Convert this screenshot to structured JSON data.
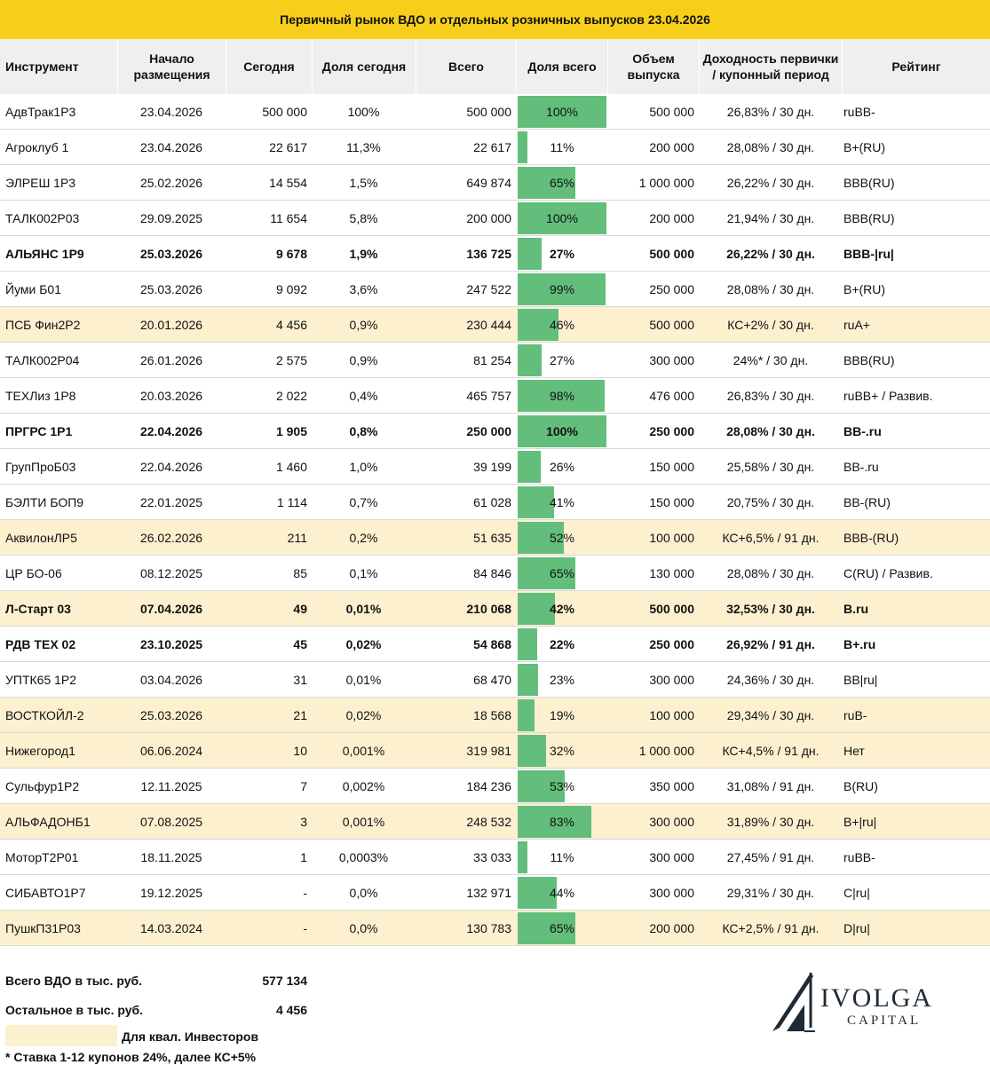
{
  "title": "Первичный рынок ВДО и отдельных розничных выпусков 23.04.2026",
  "columns": {
    "instrument": "Инструмент",
    "start": "Начало размещения",
    "today": "Сегодня",
    "share_today": "Доля сегодня",
    "total": "Всего",
    "share_total": "Доля всего",
    "volume": "Объем выпуска",
    "yield": "Доходность первички / купонный период",
    "rating": "Рейтинг"
  },
  "rows": [
    {
      "name": "АдвТрак1Р3",
      "date": "23.04.2026",
      "today": "500 000",
      "share": "100%",
      "total": "500 000",
      "pct": "100%",
      "fill": 1.0,
      "volume": "500 000",
      "yield": "26,83% / 30 дн.",
      "rating": "ruBB-",
      "qual": false,
      "bold": false
    },
    {
      "name": "Агроклуб 1",
      "date": "23.04.2026",
      "today": "22 617",
      "share": "11,3%",
      "total": "22 617",
      "pct": "11%",
      "fill": 0.11,
      "volume": "200 000",
      "yield": "28,08% / 30 дн.",
      "rating": "B+(RU)",
      "qual": false,
      "bold": false
    },
    {
      "name": "ЭЛРЕШ 1Р3",
      "date": "25.02.2026",
      "today": "14 554",
      "share": "1,5%",
      "total": "649 874",
      "pct": "65%",
      "fill": 0.65,
      "volume": "1 000 000",
      "yield": "26,22% / 30 дн.",
      "rating": "BBB(RU)",
      "qual": false,
      "bold": false
    },
    {
      "name": "ТАЛК002Р03",
      "date": "29.09.2025",
      "today": "11 654",
      "share": "5,8%",
      "total": "200 000",
      "pct": "100%",
      "fill": 1.0,
      "volume": "200 000",
      "yield": "21,94% / 30 дн.",
      "rating": "BBB(RU)",
      "qual": false,
      "bold": false
    },
    {
      "name": "АЛЬЯНС 1Р9",
      "date": "25.03.2026",
      "today": "9 678",
      "share": "1,9%",
      "total": "136 725",
      "pct": "27%",
      "fill": 0.27,
      "volume": "500 000",
      "yield": "26,22% / 30 дн.",
      "rating": "BBB-|ru|",
      "qual": false,
      "bold": true
    },
    {
      "name": "Йуми Б01",
      "date": "25.03.2026",
      "today": "9 092",
      "share": "3,6%",
      "total": "247 522",
      "pct": "99%",
      "fill": 0.99,
      "volume": "250 000",
      "yield": "28,08% / 30 дн.",
      "rating": "B+(RU)",
      "qual": false,
      "bold": false
    },
    {
      "name": "ПСБ Фин2Р2",
      "date": "20.01.2026",
      "today": "4 456",
      "share": "0,9%",
      "total": "230 444",
      "pct": "46%",
      "fill": 0.46,
      "volume": "500 000",
      "yield": "КС+2% / 30 дн.",
      "rating": "ruA+",
      "qual": true,
      "bold": false
    },
    {
      "name": "ТАЛК002Р04",
      "date": "26.01.2026",
      "today": "2 575",
      "share": "0,9%",
      "total": "81 254",
      "pct": "27%",
      "fill": 0.27,
      "volume": "300 000",
      "yield": "24%* / 30 дн.",
      "rating": "BBB(RU)",
      "qual": false,
      "bold": false
    },
    {
      "name": "ТЕХЛиз 1Р8",
      "date": "20.03.2026",
      "today": "2 022",
      "share": "0,4%",
      "total": "465 757",
      "pct": "98%",
      "fill": 0.98,
      "volume": "476 000",
      "yield": "26,83% / 30 дн.",
      "rating": "ruBB+ / Развив.",
      "qual": false,
      "bold": false
    },
    {
      "name": "ПРГРС 1Р1",
      "date": "22.04.2026",
      "today": "1 905",
      "share": "0,8%",
      "total": "250 000",
      "pct": "100%",
      "fill": 1.0,
      "volume": "250 000",
      "yield": "28,08% / 30 дн.",
      "rating": "BB-.ru",
      "qual": false,
      "bold": true
    },
    {
      "name": "ГрупПроБ03",
      "date": "22.04.2026",
      "today": "1 460",
      "share": "1,0%",
      "total": "39 199",
      "pct": "26%",
      "fill": 0.26,
      "volume": "150 000",
      "yield": "25,58% / 30 дн.",
      "rating": "BB-.ru",
      "qual": false,
      "bold": false
    },
    {
      "name": "БЭЛТИ БОП9",
      "date": "22.01.2025",
      "today": "1 114",
      "share": "0,7%",
      "total": "61 028",
      "pct": "41%",
      "fill": 0.41,
      "volume": "150 000",
      "yield": "20,75% / 30 дн.",
      "rating": " BB-(RU)",
      "qual": false,
      "bold": false
    },
    {
      "name": "АквилонЛР5",
      "date": "26.02.2026",
      "today": "211",
      "share": "0,2%",
      "total": "51 635",
      "pct": "52%",
      "fill": 0.52,
      "volume": "100 000",
      "yield": "КС+6,5% / 91 дн.",
      "rating": "BBB-(RU)",
      "qual": true,
      "bold": false
    },
    {
      "name": "ЦР БО-06",
      "date": "08.12.2025",
      "today": "85",
      "share": "0,1%",
      "total": "84 846",
      "pct": "65%",
      "fill": 0.65,
      "volume": "130 000",
      "yield": "28,08% / 30 дн.",
      "rating": "C(RU) / Развив.",
      "qual": false,
      "bold": false
    },
    {
      "name": "Л-Старт 03",
      "date": "07.04.2026",
      "today": "49",
      "share": "0,01%",
      "total": "210 068",
      "pct": "42%",
      "fill": 0.42,
      "volume": "500 000",
      "yield": "32,53% / 30 дн.",
      "rating": "B.ru",
      "qual": true,
      "bold": true
    },
    {
      "name": "РДВ ТЕХ 02",
      "date": "23.10.2025",
      "today": "45",
      "share": "0,02%",
      "total": "54 868",
      "pct": "22%",
      "fill": 0.22,
      "volume": "250 000",
      "yield": "26,92% / 91 дн.",
      "rating": "B+.ru",
      "qual": false,
      "bold": true
    },
    {
      "name": "УПТК65 1Р2",
      "date": "03.04.2026",
      "today": "31",
      "share": "0,01%",
      "total": "68 470",
      "pct": "23%",
      "fill": 0.23,
      "volume": "300 000",
      "yield": "24,36% / 30 дн.",
      "rating": "BB|ru|",
      "qual": false,
      "bold": false
    },
    {
      "name": "ВОСТКОЙЛ-2",
      "date": "25.03.2026",
      "today": "21",
      "share": "0,02%",
      "total": "18 568",
      "pct": "19%",
      "fill": 0.19,
      "volume": "100 000",
      "yield": "29,34% / 30 дн.",
      "rating": "ruB-",
      "qual": true,
      "bold": false
    },
    {
      "name": "Нижегород1",
      "date": "06.06.2024",
      "today": "10",
      "share": "0,001%",
      "total": "319 981",
      "pct": "32%",
      "fill": 0.32,
      "volume": "1 000 000",
      "yield": "КС+4,5% / 91 дн.",
      "rating": "Нет",
      "qual": true,
      "bold": false
    },
    {
      "name": "Сульфур1Р2",
      "date": "12.11.2025",
      "today": "7",
      "share": "0,002%",
      "total": "184 236",
      "pct": "53%",
      "fill": 0.53,
      "volume": "350 000",
      "yield": "31,08% / 91 дн.",
      "rating": "B(RU)",
      "qual": false,
      "bold": false
    },
    {
      "name": "АЛЬФАДОНБ1",
      "date": "07.08.2025",
      "today": "3",
      "share": "0,001%",
      "total": "248 532",
      "pct": "83%",
      "fill": 0.83,
      "volume": "300 000",
      "yield": "31,89% / 30 дн.",
      "rating": "B+|ru|",
      "qual": true,
      "bold": false
    },
    {
      "name": "МоторТ2Р01",
      "date": "18.11.2025",
      "today": "1",
      "share": "0,0003%",
      "total": "33 033",
      "pct": "11%",
      "fill": 0.11,
      "volume": "300 000",
      "yield": "27,45% / 91 дн.",
      "rating": "ruBB-",
      "qual": false,
      "bold": false
    },
    {
      "name": "СИБАВТО1Р7",
      "date": "19.12.2025",
      "today": "-",
      "share": "0,0%",
      "total": "132 971",
      "pct": "44%",
      "fill": 0.44,
      "volume": "300 000",
      "yield": "29,31% / 30 дн.",
      "rating": "C|ru|",
      "qual": false,
      "bold": false
    },
    {
      "name": "ПушкП31Р03",
      "date": "14.03.2024",
      "today": "-",
      "share": "0,0%",
      "total": "130 783",
      "pct": "65%",
      "fill": 0.65,
      "volume": "200 000",
      "yield": "КС+2,5% / 91 дн.",
      "rating": "D|ru|",
      "qual": true,
      "bold": false
    }
  ],
  "footer": {
    "total_label": "Всего ВДО в тыс. руб.",
    "total_value": "577 134",
    "other_label": "Остальное в тыс. руб.",
    "other_value": "4 456",
    "legend_label": "Для квал. Инвесторов",
    "note": "* Ставка 1-12 купонов 24%, далее КС+5%"
  },
  "logo": {
    "name": "IVOLGA",
    "sub": "CAPITAL"
  },
  "colors": {
    "title_bg": "#f7cf1b",
    "header_bg": "#efefef",
    "bar": "#63be7b",
    "qual_bg": "#fcf0cf"
  }
}
